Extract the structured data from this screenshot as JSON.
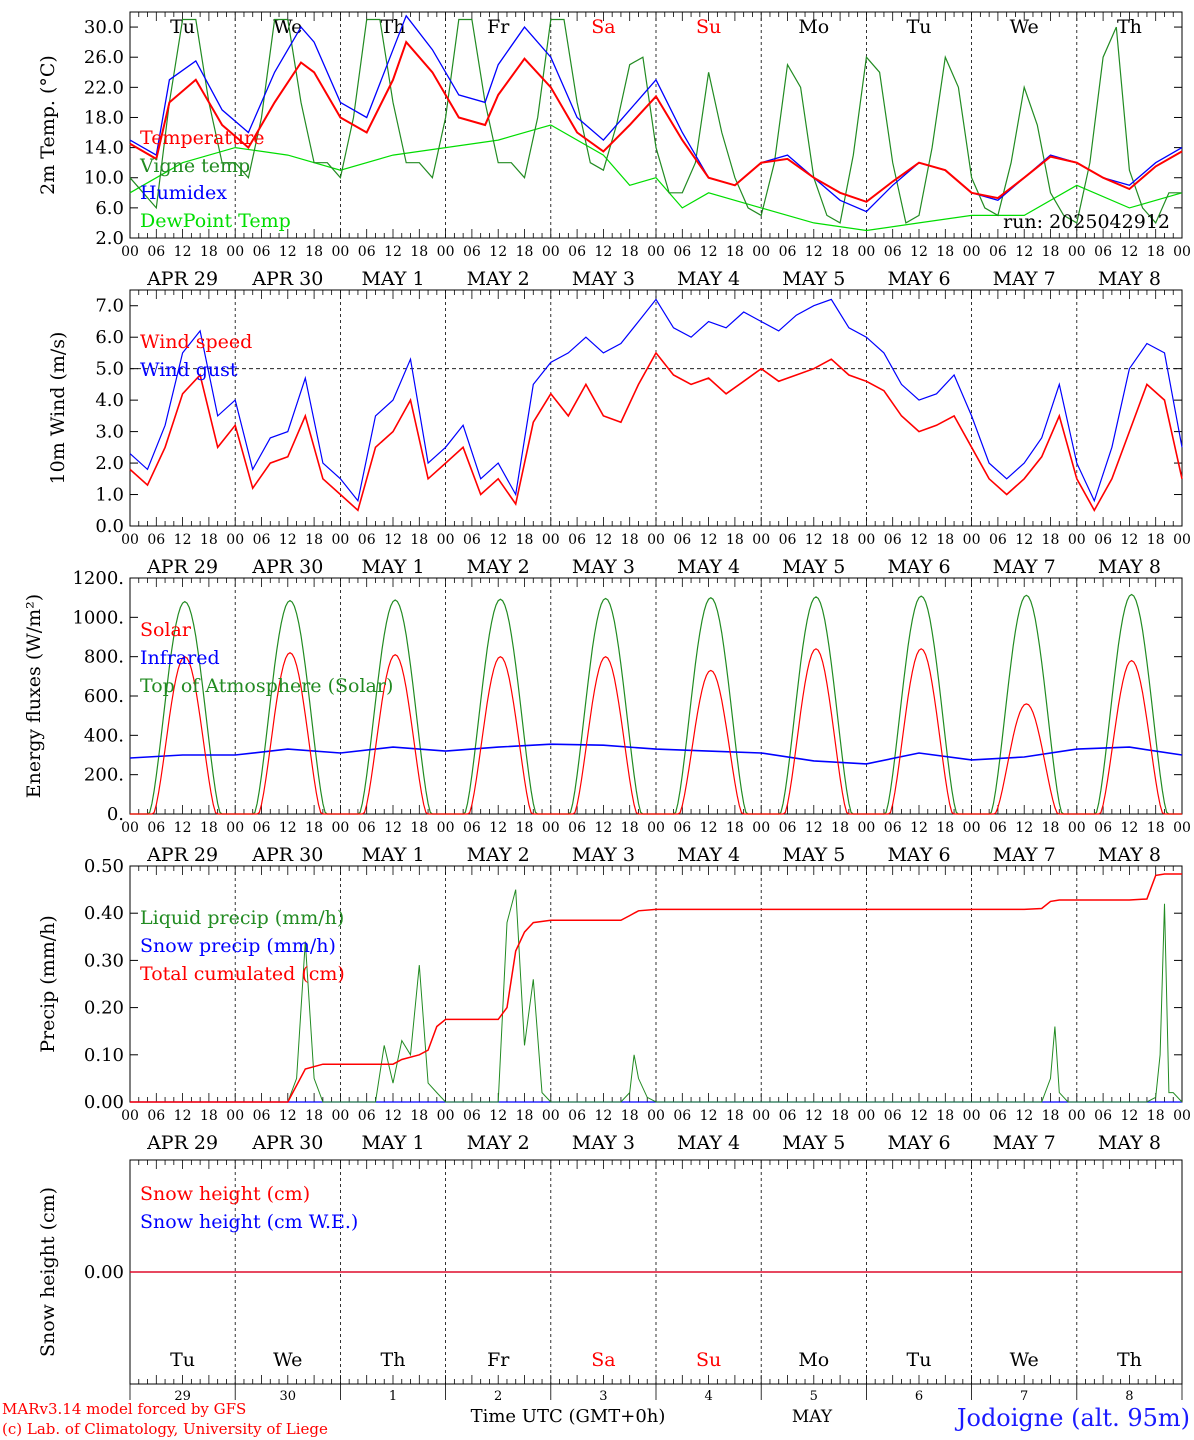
{
  "colors": {
    "red": "#ff0000",
    "green": "#228b22",
    "blue": "#0000ff",
    "light_green": "#00dd00",
    "black": "#000000"
  },
  "x_axis": {
    "hour_ticks": [
      "00",
      "06",
      "12",
      "18"
    ],
    "date_labels": [
      "APR 29",
      "APR 30",
      "MAY  1",
      "MAY  2",
      "MAY  3",
      "MAY  4",
      "MAY  5",
      "MAY  6",
      "MAY  7",
      "MAY  8"
    ],
    "weekdays": [
      "Tu",
      "We",
      "Th",
      "Fr",
      "Sa",
      "Su",
      "Mo",
      "Tu",
      "We",
      "Th"
    ],
    "weekend_flags": [
      false,
      false,
      false,
      false,
      true,
      true,
      false,
      false,
      false,
      false
    ],
    "day_numbers": [
      "29",
      "30",
      "1",
      "2",
      "3",
      "4",
      "5",
      "6",
      "7",
      "8"
    ],
    "month_label": "MAY",
    "time_label": "Time UTC (GMT+0h)"
  },
  "footer": {
    "credit_1": "MARv3.14 model forced by GFS",
    "credit_2": "(c) Lab. of Climatology, University of Liege",
    "location": "Jodoigne (alt. 95m)"
  },
  "chart_data": [
    {
      "type": "line",
      "ylabel": "2m Temp. (°C)",
      "ylim": [
        2,
        32
      ],
      "yticks": [
        "2.0",
        "6.0",
        "10.0",
        "14.0",
        "18.0",
        "22.0",
        "26.0",
        "30.0"
      ],
      "annotation": "run: 2025042912",
      "x_unit": "hours since APR 29 00 UTC",
      "series": [
        {
          "name": "Temperature",
          "color": "red",
          "x": [
            0,
            6,
            9,
            15,
            21,
            27,
            33,
            39,
            42,
            48,
            54,
            60,
            63,
            69,
            75,
            81,
            84,
            90,
            96,
            102,
            108,
            114,
            120,
            126,
            132,
            138,
            144,
            150,
            156,
            162,
            168,
            174,
            180,
            186,
            192,
            198,
            204,
            210,
            216,
            222,
            228,
            234,
            240
          ],
          "y": [
            14.5,
            12.5,
            20,
            23,
            17,
            14,
            20,
            25.3,
            24,
            18,
            16,
            23,
            28,
            24,
            18,
            17,
            21,
            25.8,
            22,
            16,
            13.5,
            17,
            20.8,
            15,
            10,
            9,
            12,
            12.5,
            10,
            8,
            6.8,
            9.5,
            12,
            11,
            8,
            7.3,
            10,
            12.8,
            12,
            10,
            8.5,
            11.5,
            13.5
          ]
        },
        {
          "name": "Vigne temp",
          "color": "green",
          "x": [
            0,
            3,
            6,
            9,
            12,
            15,
            18,
            21,
            24,
            27,
            30,
            33,
            36,
            39,
            42,
            45,
            48,
            51,
            54,
            57,
            60,
            63,
            66,
            69,
            72,
            75,
            78,
            81,
            84,
            87,
            90,
            93,
            96,
            99,
            102,
            105,
            108,
            111,
            114,
            117,
            120,
            123,
            126,
            129,
            132,
            135,
            138,
            141,
            144,
            147,
            150,
            153,
            156,
            159,
            162,
            165,
            168,
            171,
            174,
            177,
            180,
            183,
            186,
            189,
            192,
            195,
            198,
            201,
            204,
            207,
            210,
            213,
            216,
            219,
            222,
            225,
            228,
            231,
            234,
            237,
            240
          ],
          "y": [
            10,
            8,
            6,
            20,
            31,
            31,
            20,
            12,
            12,
            10,
            18,
            31,
            31,
            20,
            12,
            12,
            10,
            18,
            31,
            31,
            20,
            12,
            12,
            10,
            18,
            31,
            31,
            20,
            12,
            12,
            10,
            18,
            31,
            31,
            20,
            12,
            11,
            17,
            25,
            26,
            14,
            8,
            8,
            12,
            24,
            16,
            10,
            6,
            5,
            12,
            25,
            22,
            10,
            5,
            4,
            13,
            26,
            24,
            12,
            4,
            5,
            14,
            26,
            22,
            10,
            6,
            5,
            12,
            22,
            17,
            8,
            5,
            4,
            12,
            26,
            30,
            11,
            6,
            4,
            8,
            8
          ]
        },
        {
          "name": "Humidex",
          "color": "blue",
          "x": [
            0,
            6,
            9,
            15,
            21,
            27,
            33,
            39,
            42,
            48,
            54,
            60,
            63,
            69,
            75,
            81,
            84,
            90,
            96,
            102,
            108,
            114,
            120,
            126,
            132,
            138,
            144,
            150,
            156,
            162,
            168,
            174,
            180,
            186,
            192,
            198,
            204,
            210,
            216,
            222,
            228,
            234,
            240
          ],
          "y": [
            15,
            13,
            23,
            25.5,
            19,
            16,
            24,
            30,
            28,
            20,
            18,
            27,
            31.5,
            27,
            21,
            20,
            25,
            30,
            26,
            18,
            15,
            19,
            23,
            16,
            10,
            9,
            12,
            13,
            10,
            7,
            5.5,
            9,
            12,
            11,
            8,
            7,
            10,
            13,
            12,
            10,
            9,
            12,
            14
          ]
        },
        {
          "name": "DewPoint Temp",
          "color": "light_green",
          "x": [
            0,
            12,
            24,
            36,
            48,
            60,
            72,
            84,
            96,
            108,
            114,
            120,
            126,
            132,
            144,
            156,
            168,
            180,
            192,
            204,
            216,
            228,
            240
          ],
          "y": [
            8,
            12,
            14,
            13,
            11,
            13,
            14,
            15,
            17,
            13,
            9,
            10,
            6,
            8,
            6,
            4,
            3,
            4,
            5,
            5,
            9,
            6,
            8
          ]
        }
      ]
    },
    {
      "type": "line",
      "ylabel": "10m Wind (m/s)",
      "ylim": [
        0,
        7.5
      ],
      "yticks": [
        "0.0",
        "1.0",
        "2.0",
        "3.0",
        "4.0",
        "5.0",
        "6.0",
        "7.0"
      ],
      "reference_line": 5.0,
      "x_unit": "hours since APR 29 00 UTC",
      "series": [
        {
          "name": "Wind speed",
          "color": "red",
          "x": [
            0,
            4,
            8,
            12,
            16,
            20,
            24,
            28,
            32,
            36,
            40,
            44,
            48,
            52,
            56,
            60,
            64,
            68,
            72,
            76,
            80,
            84,
            88,
            92,
            96,
            100,
            104,
            108,
            112,
            116,
            120,
            124,
            128,
            132,
            136,
            140,
            144,
            148,
            152,
            156,
            160,
            164,
            168,
            172,
            176,
            180,
            184,
            188,
            192,
            196,
            200,
            204,
            208,
            212,
            216,
            220,
            224,
            228,
            232,
            236,
            240
          ],
          "y": [
            1.8,
            1.3,
            2.5,
            4.2,
            4.8,
            2.5,
            3.2,
            1.2,
            2.0,
            2.2,
            3.5,
            1.5,
            1.0,
            0.5,
            2.5,
            3.0,
            4.0,
            1.5,
            2.0,
            2.5,
            1.0,
            1.5,
            0.7,
            3.3,
            4.2,
            3.5,
            4.5,
            3.5,
            3.3,
            4.5,
            5.5,
            4.8,
            4.5,
            4.7,
            4.2,
            4.6,
            5.0,
            4.6,
            4.8,
            5.0,
            5.3,
            4.8,
            4.6,
            4.3,
            3.5,
            3.0,
            3.2,
            3.5,
            2.5,
            1.5,
            1.0,
            1.5,
            2.2,
            3.5,
            1.5,
            0.5,
            1.5,
            3.0,
            4.5,
            4.0,
            1.5
          ]
        },
        {
          "name": "Wind gust",
          "color": "blue",
          "x": [
            0,
            4,
            8,
            12,
            16,
            20,
            24,
            28,
            32,
            36,
            40,
            44,
            48,
            52,
            56,
            60,
            64,
            68,
            72,
            76,
            80,
            84,
            88,
            92,
            96,
            100,
            104,
            108,
            112,
            116,
            120,
            124,
            128,
            132,
            136,
            140,
            144,
            148,
            152,
            156,
            160,
            164,
            168,
            172,
            176,
            180,
            184,
            188,
            192,
            196,
            200,
            204,
            208,
            212,
            216,
            220,
            224,
            228,
            232,
            236,
            240
          ],
          "y": [
            2.3,
            1.8,
            3.2,
            5.5,
            6.2,
            3.5,
            4.0,
            1.8,
            2.8,
            3.0,
            4.7,
            2.0,
            1.5,
            0.8,
            3.5,
            4.0,
            5.3,
            2.0,
            2.5,
            3.2,
            1.5,
            2.0,
            1.0,
            4.5,
            5.2,
            5.5,
            6.0,
            5.5,
            5.8,
            6.5,
            7.2,
            6.3,
            6.0,
            6.5,
            6.3,
            6.8,
            6.5,
            6.2,
            6.7,
            7.0,
            7.2,
            6.3,
            6.0,
            5.5,
            4.5,
            4.0,
            4.2,
            4.8,
            3.5,
            2.0,
            1.5,
            2.0,
            2.8,
            4.5,
            2.0,
            0.8,
            2.5,
            5.0,
            5.8,
            5.5,
            2.5
          ]
        }
      ]
    },
    {
      "type": "line",
      "ylabel": "Energy fluxes (W/m²)",
      "ylim": [
        0,
        1200
      ],
      "yticks": [
        "0.",
        "200.",
        "400.",
        "600.",
        "800.",
        "1000.",
        "1200."
      ],
      "x_unit": "hours since APR 29 00 UTC",
      "daily_solar_peak": [
        800,
        820,
        810,
        800,
        800,
        730,
        840,
        840,
        560,
        780
      ],
      "series": [
        {
          "name": "Solar",
          "color": "red"
        },
        {
          "name": "Infrared",
          "color": "blue",
          "x": [
            0,
            12,
            24,
            36,
            48,
            60,
            72,
            84,
            96,
            108,
            120,
            132,
            144,
            156,
            168,
            180,
            192,
            204,
            216,
            228,
            240
          ],
          "y": [
            285,
            300,
            300,
            330,
            310,
            340,
            320,
            340,
            355,
            350,
            330,
            320,
            310,
            270,
            255,
            310,
            275,
            290,
            330,
            340,
            300
          ]
        },
        {
          "name": "Top of Atmosphere (Solar)",
          "color": "green",
          "daily_peak": [
            1080,
            1085,
            1088,
            1092,
            1096,
            1100,
            1104,
            1108,
            1112,
            1116
          ]
        }
      ]
    },
    {
      "type": "line",
      "ylabel": "Precip (mm/h)",
      "ylim": [
        0,
        0.5
      ],
      "yticks": [
        "0.00",
        "0.10",
        "0.20",
        "0.30",
        "0.40",
        "0.50"
      ],
      "x_unit": "hours since APR 29 00 UTC",
      "series": [
        {
          "name": "Liquid precip (mm/h)",
          "color": "green",
          "x": [
            0,
            36,
            38,
            40,
            42,
            44,
            46,
            48,
            56,
            58,
            60,
            62,
            64,
            66,
            68,
            70,
            72,
            84,
            86,
            88,
            90,
            92,
            94,
            96,
            112,
            114,
            115,
            116,
            118,
            120,
            208,
            210,
            211,
            212,
            214,
            216,
            232,
            234,
            235,
            236,
            237,
            238,
            240
          ],
          "y": [
            0,
            0,
            0.05,
            0.34,
            0.05,
            0,
            0,
            0,
            0,
            0.12,
            0.04,
            0.13,
            0.1,
            0.29,
            0.04,
            0.02,
            0,
            0,
            0.38,
            0.45,
            0.12,
            0.26,
            0.02,
            0,
            0,
            0.02,
            0.1,
            0.05,
            0.01,
            0,
            0,
            0.05,
            0.16,
            0.02,
            0,
            0,
            0,
            0.01,
            0.1,
            0.42,
            0.02,
            0.02,
            0
          ]
        },
        {
          "name": "Snow precip (mm/h)",
          "color": "blue",
          "x": [
            0,
            240
          ],
          "y": [
            0,
            0
          ]
        },
        {
          "name": "Total cumulated (cm)",
          "color": "red",
          "x": [
            0,
            36,
            40,
            44,
            60,
            62,
            66,
            68,
            70,
            72,
            84,
            86,
            88,
            90,
            92,
            96,
            108,
            112,
            114,
            116,
            120,
            168,
            180,
            192,
            204,
            208,
            210,
            212,
            228,
            232,
            234,
            236,
            240
          ],
          "y": [
            0,
            0,
            0.07,
            0.08,
            0.08,
            0.09,
            0.1,
            0.11,
            0.16,
            0.175,
            0.175,
            0.2,
            0.32,
            0.36,
            0.38,
            0.385,
            0.385,
            0.385,
            0.395,
            0.405,
            0.408,
            0.408,
            0.408,
            0.408,
            0.408,
            0.41,
            0.425,
            0.428,
            0.428,
            0.43,
            0.48,
            0.483,
            0.483
          ]
        }
      ]
    },
    {
      "type": "line",
      "ylabel": "Snow height (cm)",
      "yticks": [
        "0.00"
      ],
      "x_unit": "hours since APR 29 00 UTC",
      "series": [
        {
          "name": "Snow height (cm)",
          "color": "red",
          "x": [
            0,
            240
          ],
          "y": [
            0,
            0
          ]
        },
        {
          "name": "Snow height (cm W.E.)",
          "color": "blue",
          "x": [
            0,
            240
          ],
          "y": [
            0,
            0
          ]
        }
      ]
    }
  ]
}
